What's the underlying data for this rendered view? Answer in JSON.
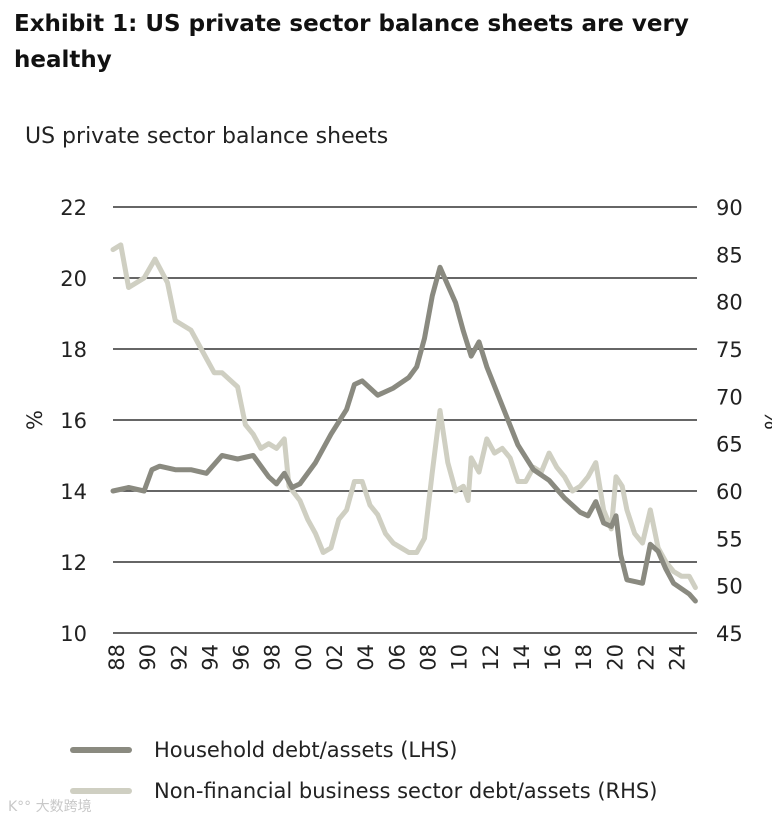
{
  "title": "Exhibit 1: US private sector balance sheets are very healthy",
  "watermark": "大数跨境",
  "chart_data": {
    "type": "line",
    "title": "US private sector balance sheets",
    "ylabel": "%",
    "ylabel_right": "%",
    "ylim": [
      10,
      22
    ],
    "ylim_right": [
      45,
      90
    ],
    "yticks": [
      "22",
      "20",
      "18",
      "16",
      "14",
      "12",
      "10"
    ],
    "yticks_right": [
      "90",
      "85",
      "80",
      "75",
      "70",
      "65",
      "60",
      "55",
      "50",
      "45"
    ],
    "xticks": [
      "88",
      "90",
      "92",
      "94",
      "96",
      "98",
      "00",
      "02",
      "04",
      "06",
      "08",
      "10",
      "12",
      "14",
      "16",
      "18",
      "20",
      "22",
      "24"
    ],
    "xlim": [
      1988,
      2025.5
    ],
    "grid": true,
    "legend_placement": "bottom",
    "colors": {
      "household": "#8a8a80",
      "business": "#cfcfc2"
    },
    "series": [
      {
        "name": "Household debt/assets (LHS)",
        "axis": "left",
        "x": [
          1988,
          1989,
          1990,
          1990.5,
          1991,
          1992,
          1993,
          1994,
          1995,
          1996,
          1997,
          1998,
          1998.5,
          1999,
          1999.5,
          2000,
          2001,
          2002,
          2003,
          2003.5,
          2004,
          2005,
          2006,
          2007,
          2007.5,
          2008,
          2008.5,
          2009,
          2009.5,
          2010,
          2010.5,
          2011,
          2011.5,
          2012,
          2013,
          2014,
          2015,
          2016,
          2017,
          2018,
          2018.5,
          2019,
          2019.5,
          2020,
          2020.3,
          2020.6,
          2021,
          2022,
          2022.5,
          2023,
          2023.5,
          2024,
          2025,
          2025.4
        ],
        "values": [
          14.0,
          14.1,
          14.0,
          14.6,
          14.7,
          14.6,
          14.6,
          14.5,
          15.0,
          14.9,
          15.0,
          14.4,
          14.2,
          14.5,
          14.1,
          14.2,
          14.8,
          15.6,
          16.3,
          17.0,
          17.1,
          16.7,
          16.9,
          17.2,
          17.5,
          18.3,
          19.5,
          20.3,
          19.8,
          19.3,
          18.5,
          17.8,
          18.2,
          17.5,
          16.4,
          15.3,
          14.6,
          14.3,
          13.8,
          13.4,
          13.3,
          13.7,
          13.1,
          13.0,
          13.3,
          12.2,
          11.5,
          11.4,
          12.5,
          12.3,
          11.8,
          11.4,
          11.1,
          10.9
        ]
      },
      {
        "name": "Non-financial business sector debt/assets (RHS)",
        "axis": "right",
        "x": [
          1988,
          1988.5,
          1989,
          1990,
          1990.7,
          1991.5,
          1992,
          1993,
          1994,
          1994.5,
          1995,
          1996,
          1996.5,
          1997,
          1997.5,
          1998,
          1998.5,
          1999,
          1999.3,
          2000,
          2000.5,
          2001,
          2001.5,
          2002,
          2002.5,
          2003,
          2003.5,
          2004,
          2004.5,
          2005,
          2005.5,
          2006,
          2006.5,
          2007,
          2007.5,
          2008,
          2008.5,
          2009,
          2009.5,
          2010,
          2010.5,
          2010.8,
          2011,
          2011.5,
          2012,
          2012.5,
          2013,
          2013.5,
          2014,
          2014.5,
          2015,
          2015.5,
          2016,
          2016.5,
          2017,
          2017.5,
          2018,
          2018.5,
          2019,
          2019.5,
          2020,
          2020.3,
          2020.7,
          2021,
          2021.5,
          2022,
          2022.5,
          2023,
          2023.5,
          2024,
          2024.5,
          2025,
          2025.4
        ],
        "values": [
          85.5,
          86,
          81.5,
          82.5,
          84.5,
          82,
          78,
          77,
          74,
          72.5,
          72.5,
          71,
          67,
          66,
          64.5,
          65,
          64.5,
          65.5,
          60.5,
          59,
          57,
          55.5,
          53.5,
          54,
          57,
          58,
          61,
          61,
          58.5,
          57.5,
          55.5,
          54.5,
          54,
          53.5,
          53.5,
          55,
          62,
          68.5,
          63,
          60,
          60.5,
          59,
          63.5,
          62,
          65.5,
          64,
          64.5,
          63.5,
          61,
          61,
          62.5,
          62,
          64,
          62.5,
          61.5,
          60,
          60.5,
          61.5,
          63,
          58,
          56,
          61.5,
          60.5,
          58,
          55.5,
          54.5,
          58,
          54,
          52.5,
          51.5,
          51,
          51,
          49.8
        ]
      }
    ]
  }
}
